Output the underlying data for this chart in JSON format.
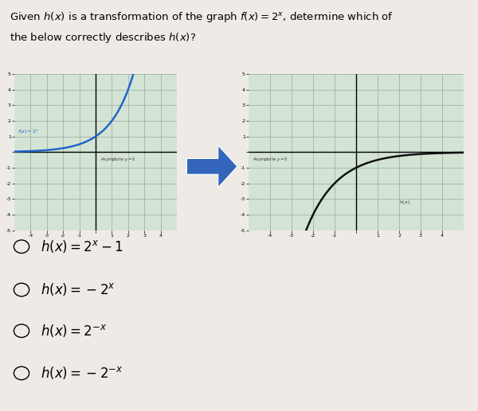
{
  "title_line1": "Given $h(x)$ is a transformation of the graph $f(x) = 2^x$, determine which of",
  "title_line2": "the below correctly describes $h(x)$?",
  "bg_color": "#eeebe6",
  "graph_bg": "#d4e4d4",
  "grid_color": "#9aaa9a",
  "left_curve_color": "#2266cc",
  "right_curve_color": "#111111",
  "arrow_color": "#3366bb",
  "left_label": "$f(x)=2^x$",
  "left_asym_label": "Asymptote $y=0$",
  "right_asym_label": "Asymptote $y=0$",
  "right_label": "$h(x)$",
  "xlim": [
    -5,
    5
  ],
  "ylim": [
    -5,
    5
  ],
  "choices": [
    "$h(x) = 2^x - 1$",
    "$h(x) = -2^x$",
    "$h(x) = 2^{-x}$",
    "$h(x) = -2^{-x}$"
  ],
  "choice_fontsize": 12,
  "title_fontsize": 9.5
}
